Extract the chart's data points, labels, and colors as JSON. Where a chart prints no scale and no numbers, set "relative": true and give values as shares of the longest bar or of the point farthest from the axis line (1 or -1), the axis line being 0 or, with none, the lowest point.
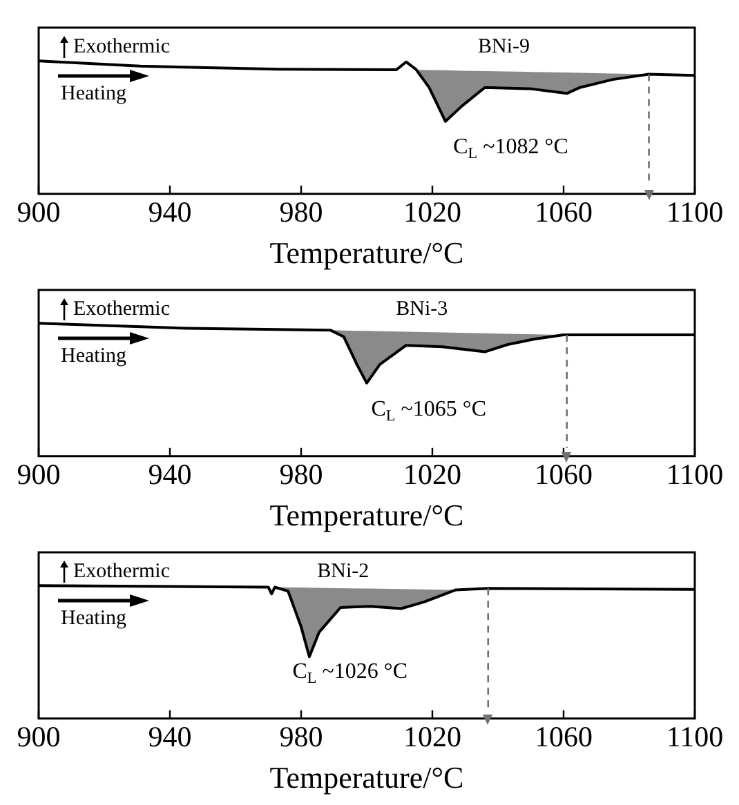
{
  "chart_data": [
    {
      "type": "line",
      "xlabel": "Temperature/°C",
      "xlim": [
        900,
        1100
      ],
      "xticks": [
        900,
        940,
        980,
        1020,
        1060,
        1100
      ],
      "relative": true,
      "grid": false,
      "marker": "none",
      "annotations": [
        "Exothermic",
        "Heating",
        "C$_{L}$ ~1082 °C"
      ],
      "series": [
        {
          "name": "BNi-9",
          "color": "#000000",
          "x": [
            900,
            931,
            973,
            1009,
            1012,
            1015,
            1019,
            1024,
            1029,
            1036,
            1050,
            1061,
            1065,
            1075,
            1086,
            1100
          ],
          "values": [
            1.0,
            0.96,
            0.937,
            0.933,
            0.992,
            0.937,
            0.8,
            0.545,
            0.66,
            0.8,
            0.79,
            0.755,
            0.8,
            0.86,
            0.9,
            0.89
          ],
          "lower": [
            null,
            null,
            null,
            null,
            null,
            0.937,
            0.8,
            0.545,
            0.66,
            0.8,
            0.79,
            0.755,
            0.8,
            0.86,
            0.9,
            null
          ],
          "upper": [
            null,
            null,
            null,
            null,
            null,
            0.933,
            0.931,
            0.929,
            0.926,
            0.923,
            0.917,
            0.912,
            0.91,
            0.905,
            0.9,
            null
          ]
        }
      ],
      "ref_lines": [
        {
          "axis": "x",
          "value": 1086,
          "color": "#707070",
          "line_style": "dashed"
        }
      ]
    },
    {
      "type": "line",
      "xlabel": "Temperature/°C",
      "xlim": [
        900,
        1100
      ],
      "xticks": [
        900,
        940,
        980,
        1020,
        1060,
        1100
      ],
      "relative": true,
      "grid": false,
      "marker": "none",
      "annotations": [
        "Exothermic",
        "Heating",
        "C$_{L}$ ~1065 °C"
      ],
      "series": [
        {
          "name": "BNi-3",
          "color": "#000000",
          "x": [
            900,
            945,
            989,
            993,
            997,
            1000,
            1004,
            1012,
            1023,
            1036,
            1043,
            1051,
            1060,
            1100
          ],
          "values": [
            1.0,
            0.962,
            0.947,
            0.898,
            0.69,
            0.55,
            0.69,
            0.834,
            0.823,
            0.785,
            0.84,
            0.88,
            0.913,
            0.913
          ],
          "lower": [
            null,
            null,
            0.947,
            0.898,
            0.69,
            0.55,
            0.69,
            0.834,
            0.823,
            0.785,
            0.84,
            0.88,
            0.913,
            null
          ],
          "upper": [
            null,
            null,
            0.947,
            0.945,
            0.943,
            0.942,
            0.94,
            0.936,
            0.931,
            0.924,
            0.921,
            0.917,
            0.913,
            null
          ]
        }
      ],
      "ref_lines": [
        {
          "axis": "x",
          "value": 1061,
          "color": "#707070",
          "line_style": "dashed"
        }
      ]
    },
    {
      "type": "line",
      "xlabel": "Temperature/°C",
      "xlim": [
        900,
        1100
      ],
      "xticks": [
        900,
        940,
        980,
        1020,
        1060,
        1100
      ],
      "relative": true,
      "grid": false,
      "marker": "none",
      "annotations": [
        "Exothermic",
        "Heating",
        "C$_{L}$ ~1026 °C"
      ],
      "series": [
        {
          "name": "BNi-2",
          "color": "#000000",
          "x": [
            900,
            970,
            971,
            972,
            976,
            980,
            982.5,
            985.5,
            992,
            1001,
            1010.5,
            1017.5,
            1027,
            1037,
            1100
          ],
          "values": [
            1.0,
            0.988,
            0.938,
            0.988,
            0.959,
            0.69,
            0.465,
            0.65,
            0.835,
            0.844,
            0.827,
            0.877,
            0.967,
            0.979,
            0.971
          ],
          "lower": [
            null,
            null,
            null,
            0.988,
            0.959,
            0.69,
            0.465,
            0.65,
            0.835,
            0.844,
            0.827,
            0.877,
            0.967,
            null,
            null
          ],
          "upper": [
            null,
            null,
            null,
            0.988,
            0.986,
            0.985,
            0.984,
            0.983,
            0.98,
            0.977,
            0.973,
            0.971,
            0.967,
            null,
            null
          ]
        }
      ],
      "ref_lines": [
        {
          "axis": "x",
          "value": 1037,
          "color": "#707070",
          "line_style": "dashed"
        }
      ]
    }
  ]
}
